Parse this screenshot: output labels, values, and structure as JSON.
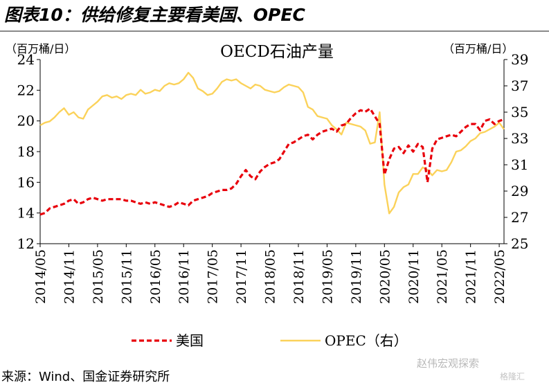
{
  "figure": {
    "title": "图表10：供给修复主要看美国、OPEC",
    "source": "来源：Wind、国金证券研究所",
    "watermark": "赵伟宏观探索",
    "watermark2": "格隆汇"
  },
  "chart_data": {
    "type": "line",
    "title": "OECD石油产量",
    "ylabel_left": "（百万桶/日）",
    "ylabel_right": "（百万桶/日）",
    "ylim_left": [
      12,
      24
    ],
    "yticks_left": [
      12,
      14,
      16,
      18,
      20,
      22,
      24
    ],
    "ylim_right": [
      25,
      39
    ],
    "yticks_right": [
      25,
      27,
      29,
      31,
      33,
      35,
      37,
      39
    ],
    "xticks": [
      "2014/05",
      "2014/11",
      "2015/05",
      "2015/11",
      "2016/05",
      "2016/11",
      "2017/05",
      "2017/11",
      "2018/05",
      "2018/11",
      "2019/05",
      "2019/11",
      "2020/05",
      "2020/11",
      "2021/05",
      "2021/11",
      "2022/05"
    ],
    "grid": false,
    "legend_position": "bottom",
    "series": [
      {
        "name": "美国",
        "axis": "left",
        "color": "#e8000b",
        "style": "dashed",
        "x": [
          "2014/05",
          "2014/06",
          "2014/07",
          "2014/08",
          "2014/09",
          "2014/10",
          "2014/11",
          "2014/12",
          "2015/01",
          "2015/02",
          "2015/03",
          "2015/04",
          "2015/05",
          "2015/06",
          "2015/07",
          "2015/08",
          "2015/09",
          "2015/10",
          "2015/11",
          "2015/12",
          "2016/01",
          "2016/02",
          "2016/03",
          "2016/04",
          "2016/05",
          "2016/06",
          "2016/07",
          "2016/08",
          "2016/09",
          "2016/10",
          "2016/11",
          "2016/12",
          "2017/01",
          "2017/02",
          "2017/03",
          "2017/04",
          "2017/05",
          "2017/06",
          "2017/07",
          "2017/08",
          "2017/09",
          "2017/10",
          "2017/11",
          "2017/12",
          "2018/01",
          "2018/02",
          "2018/03",
          "2018/04",
          "2018/05",
          "2018/06",
          "2018/07",
          "2018/08",
          "2018/09",
          "2018/10",
          "2018/11",
          "2018/12",
          "2019/01",
          "2019/02",
          "2019/03",
          "2019/04",
          "2019/05",
          "2019/06",
          "2019/07",
          "2019/08",
          "2019/09",
          "2019/10",
          "2019/11",
          "2019/12",
          "2020/01",
          "2020/02",
          "2020/03",
          "2020/04",
          "2020/05",
          "2020/06",
          "2020/07",
          "2020/08",
          "2020/09",
          "2020/10",
          "2020/11",
          "2020/12",
          "2021/01",
          "2021/02",
          "2021/03",
          "2021/04",
          "2021/05",
          "2021/06",
          "2021/07",
          "2021/08",
          "2021/09",
          "2021/10",
          "2021/11",
          "2021/12",
          "2022/01",
          "2022/02",
          "2022/03",
          "2022/04",
          "2022/05",
          "2022/06"
        ],
        "values": [
          13.9,
          14.0,
          14.3,
          14.4,
          14.5,
          14.6,
          14.8,
          14.9,
          14.6,
          14.7,
          14.9,
          15.0,
          14.9,
          14.8,
          14.9,
          14.9,
          14.9,
          14.9,
          14.8,
          14.8,
          14.7,
          14.6,
          14.7,
          14.6,
          14.7,
          14.6,
          14.5,
          14.4,
          14.5,
          14.7,
          14.6,
          14.5,
          14.8,
          14.9,
          15.0,
          15.1,
          15.3,
          15.4,
          15.5,
          15.5,
          15.6,
          15.9,
          16.4,
          16.8,
          16.4,
          16.2,
          16.7,
          17.0,
          17.2,
          17.3,
          17.5,
          18.0,
          18.5,
          18.6,
          18.8,
          19.0,
          19.1,
          18.8,
          19.1,
          19.3,
          19.4,
          19.5,
          19.3,
          19.7,
          19.8,
          20.2,
          20.5,
          20.7,
          20.6,
          20.8,
          20.3,
          19.8,
          16.5,
          17.5,
          18.2,
          18.3,
          17.9,
          18.4,
          18.0,
          18.5,
          18.3,
          16.0,
          18.2,
          18.8,
          18.9,
          19.0,
          19.1,
          19.0,
          19.3,
          19.6,
          19.8,
          19.8,
          19.4,
          20.0,
          20.1,
          19.8,
          20.0,
          20.1
        ]
      },
      {
        "name": "OPEC（右）",
        "axis": "right",
        "color": "#fbd25a",
        "style": "solid",
        "x": [
          "2014/05",
          "2014/06",
          "2014/07",
          "2014/08",
          "2014/09",
          "2014/10",
          "2014/11",
          "2014/12",
          "2015/01",
          "2015/02",
          "2015/03",
          "2015/04",
          "2015/05",
          "2015/06",
          "2015/07",
          "2015/08",
          "2015/09",
          "2015/10",
          "2015/11",
          "2015/12",
          "2016/01",
          "2016/02",
          "2016/03",
          "2016/04",
          "2016/05",
          "2016/06",
          "2016/07",
          "2016/08",
          "2016/09",
          "2016/10",
          "2016/11",
          "2016/12",
          "2017/01",
          "2017/02",
          "2017/03",
          "2017/04",
          "2017/05",
          "2017/06",
          "2017/07",
          "2017/08",
          "2017/09",
          "2017/10",
          "2017/11",
          "2017/12",
          "2018/01",
          "2018/02",
          "2018/03",
          "2018/04",
          "2018/05",
          "2018/06",
          "2018/07",
          "2018/08",
          "2018/09",
          "2018/10",
          "2018/11",
          "2018/12",
          "2019/01",
          "2019/02",
          "2019/03",
          "2019/04",
          "2019/05",
          "2019/06",
          "2019/07",
          "2019/08",
          "2019/09",
          "2019/10",
          "2019/11",
          "2019/12",
          "2020/01",
          "2020/02",
          "2020/03",
          "2020/04",
          "2020/05",
          "2020/06",
          "2020/07",
          "2020/08",
          "2020/09",
          "2020/10",
          "2020/11",
          "2020/12",
          "2021/01",
          "2021/02",
          "2021/03",
          "2021/04",
          "2021/05",
          "2021/06",
          "2021/07",
          "2021/08",
          "2021/09",
          "2021/10",
          "2021/11",
          "2021/12",
          "2022/01",
          "2022/02",
          "2022/03",
          "2022/04",
          "2022/05",
          "2022/06"
        ],
        "values": [
          34.0,
          34.2,
          34.3,
          34.6,
          35.0,
          35.3,
          34.8,
          35.0,
          34.6,
          34.5,
          35.2,
          35.5,
          35.8,
          36.2,
          36.3,
          36.1,
          36.2,
          36.0,
          36.3,
          36.4,
          36.3,
          36.7,
          36.4,
          36.5,
          36.7,
          36.6,
          37.0,
          37.2,
          37.1,
          37.2,
          37.5,
          38.0,
          37.6,
          36.8,
          36.6,
          36.3,
          36.4,
          36.8,
          37.3,
          37.5,
          37.4,
          37.5,
          37.2,
          37.0,
          36.8,
          37.1,
          37.0,
          36.7,
          36.6,
          36.5,
          36.6,
          36.9,
          37.1,
          37.0,
          36.9,
          36.5,
          35.4,
          35.2,
          34.7,
          34.6,
          34.5,
          34.0,
          33.7,
          33.3,
          34.2,
          34.1,
          34.0,
          33.9,
          33.6,
          32.6,
          32.7,
          35.0,
          29.5,
          27.3,
          27.8,
          28.9,
          29.3,
          29.5,
          30.3,
          30.3,
          30.8,
          30.6,
          30.2,
          30.6,
          30.5,
          30.6,
          31.2,
          32.0,
          32.1,
          32.4,
          32.8,
          33.0,
          33.4,
          33.5,
          33.7,
          33.9,
          34.2,
          33.7
        ]
      }
    ]
  }
}
